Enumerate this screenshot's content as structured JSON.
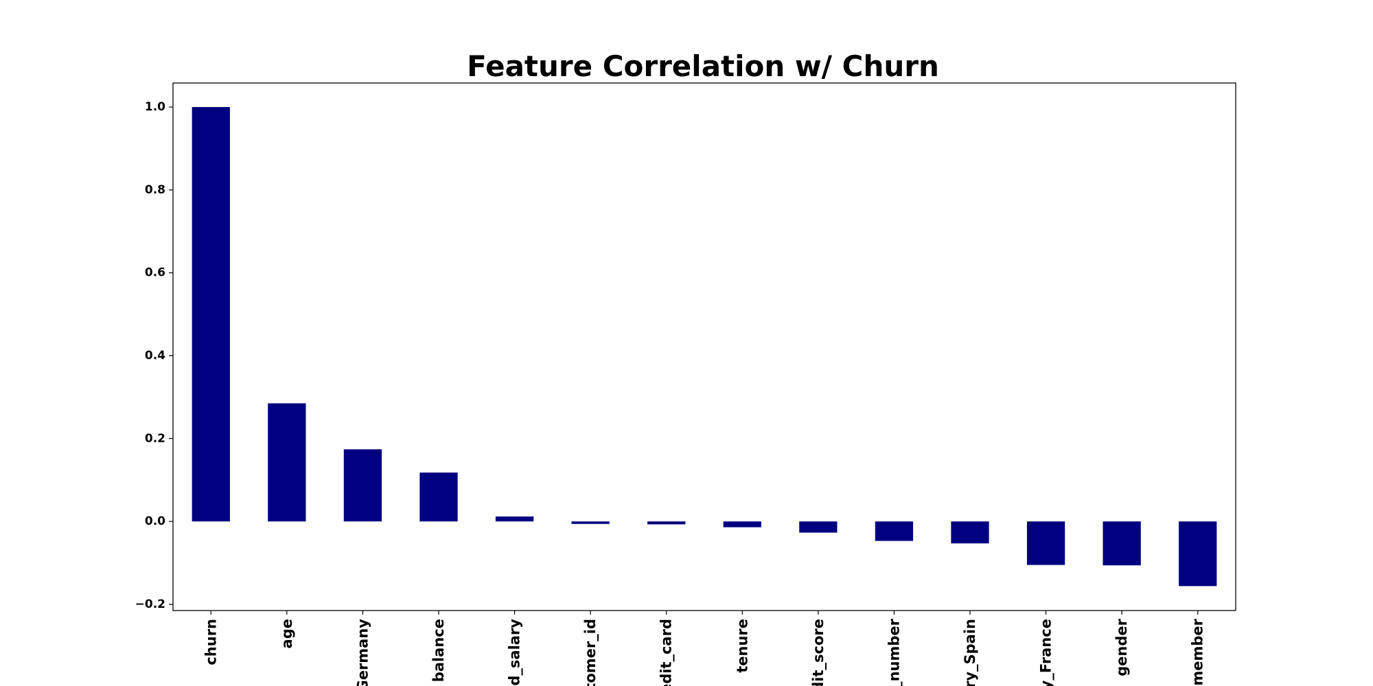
{
  "chart_data": {
    "type": "bar",
    "title": "Feature Correlation w/ Churn",
    "xlabel": "",
    "ylabel": "",
    "categories": [
      "churn",
      "age",
      "Germany",
      "balance",
      "d_salary",
      "tomer_id",
      "edit_card",
      "tenure",
      "dit_score",
      "_number",
      "ry_Spain",
      "y_France",
      "gender",
      "member"
    ],
    "values": [
      1.0,
      0.285,
      0.174,
      0.118,
      0.012,
      -0.006,
      -0.007,
      -0.014,
      -0.027,
      -0.047,
      -0.053,
      -0.105,
      -0.106,
      -0.156
    ],
    "yticks": [
      "−0.2",
      "0.0",
      "0.2",
      "0.4",
      "0.6",
      "0.8",
      "1.0"
    ],
    "ylim": [
      -0.215,
      1.058
    ],
    "bar_color": "#000080",
    "grid": false,
    "legend": "none"
  }
}
